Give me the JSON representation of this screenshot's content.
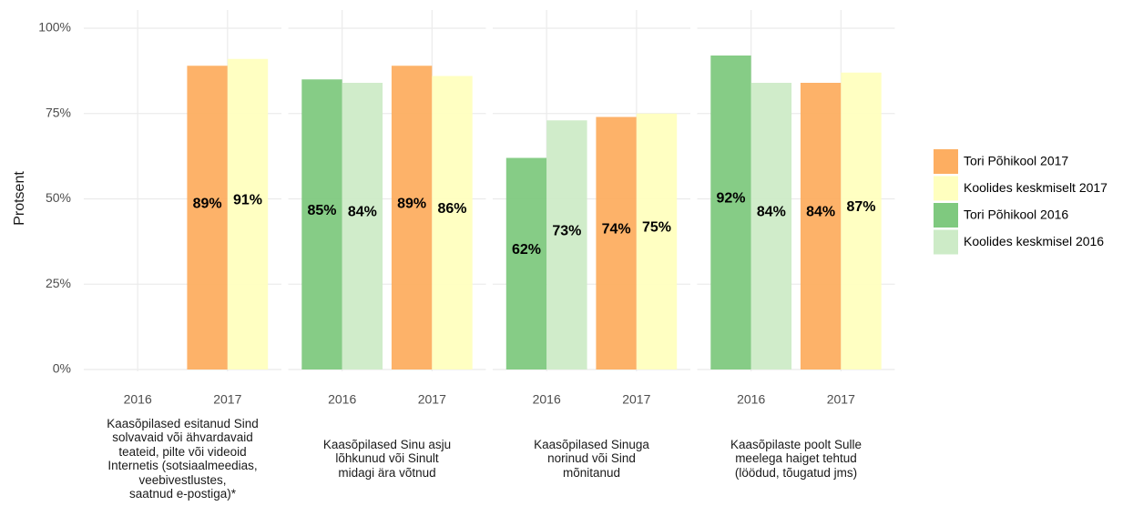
{
  "chart_data": {
    "type": "bar",
    "ylabel": "Protsent",
    "ylim": [
      0,
      100
    ],
    "yticks": [
      {
        "value": 0,
        "label": "0%"
      },
      {
        "value": 25,
        "label": "25%"
      },
      {
        "value": 50,
        "label": "50%"
      },
      {
        "value": 75,
        "label": "75%"
      },
      {
        "value": 100,
        "label": "100%"
      }
    ],
    "grid": true,
    "legend": "right",
    "facets": [
      {
        "label": "Kaasõpilased esitanud Sind\nsolvavaid või ähvardavaid\nteateid, pilte või videoid\nInternetis (sotsiaalmeedias,\nveebivestlustes,\nsaatnud e-postiga)*",
        "categories": [
          "2016",
          "2017"
        ]
      },
      {
        "label": "Kaasõpilased Sinu asju\nlõhkunud või Sinult\nmidagi ära võtnud",
        "categories": [
          "2016",
          "2017"
        ]
      },
      {
        "label": "Kaasõpilased Sinuga\nnorinud või Sind\nmõnitanud",
        "categories": [
          "2016",
          "2017"
        ]
      },
      {
        "label": "Kaasõpilaste poolt Sulle\nmeelega haiget tehtud\n(löödud, tõugatud jms)",
        "categories": [
          "2016",
          "2017"
        ]
      }
    ],
    "series": [
      {
        "name": "Tori Põhikool 2017",
        "color": "#fdae61",
        "values": [
          89,
          89,
          74,
          84
        ],
        "value_labels": [
          "89%",
          "89%",
          "74%",
          "84%"
        ]
      },
      {
        "name": "Koolides keskmiselt 2017",
        "color": "#ffffbf",
        "values": [
          91,
          86,
          75,
          87
        ],
        "value_labels": [
          "91%",
          "86%",
          "75%",
          "87%"
        ]
      },
      {
        "name": "Tori Põhikool 2016",
        "color": "#7fc97f",
        "values": [
          null,
          85,
          62,
          92
        ],
        "value_labels": [
          null,
          "85%",
          "62%",
          "92%"
        ]
      },
      {
        "name": "Koolides keskmisel 2016",
        "color": "#cdebc7",
        "values": [
          null,
          84,
          73,
          84
        ],
        "value_labels": [
          null,
          "84%",
          "73%",
          "84%"
        ]
      }
    ]
  }
}
